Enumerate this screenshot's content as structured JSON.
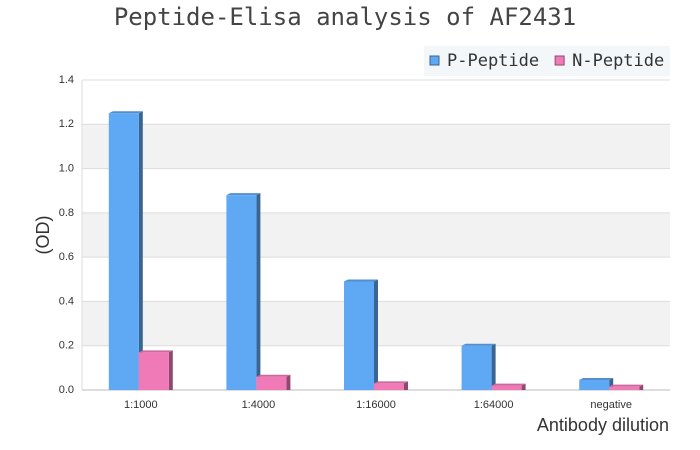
{
  "chart_data": {
    "type": "bar",
    "title": "Peptide-Elisa analysis of AF2431",
    "ylabel": "(OD)",
    "xlabel": "Antibody dilution",
    "categories": [
      "1:1000",
      "1:4000",
      "1:16000",
      "1:64000",
      "negative"
    ],
    "series": [
      {
        "name": "P-Peptide",
        "color": "#5fa8f3",
        "values": [
          1.25,
          0.88,
          0.49,
          0.2,
          0.045
        ]
      },
      {
        "name": "N-Peptide",
        "color": "#f07ab8",
        "values": [
          0.17,
          0.06,
          0.03,
          0.02,
          0.015
        ]
      }
    ],
    "ylim": [
      0,
      1.4
    ],
    "yticks": [
      {
        "value": 0,
        "label": "0.0"
      },
      0.2,
      0.4,
      0.6,
      0.8,
      {
        "value": 1,
        "label": "1.0"
      },
      1.2,
      1.4
    ],
    "grid": true,
    "legend": "top-right"
  }
}
